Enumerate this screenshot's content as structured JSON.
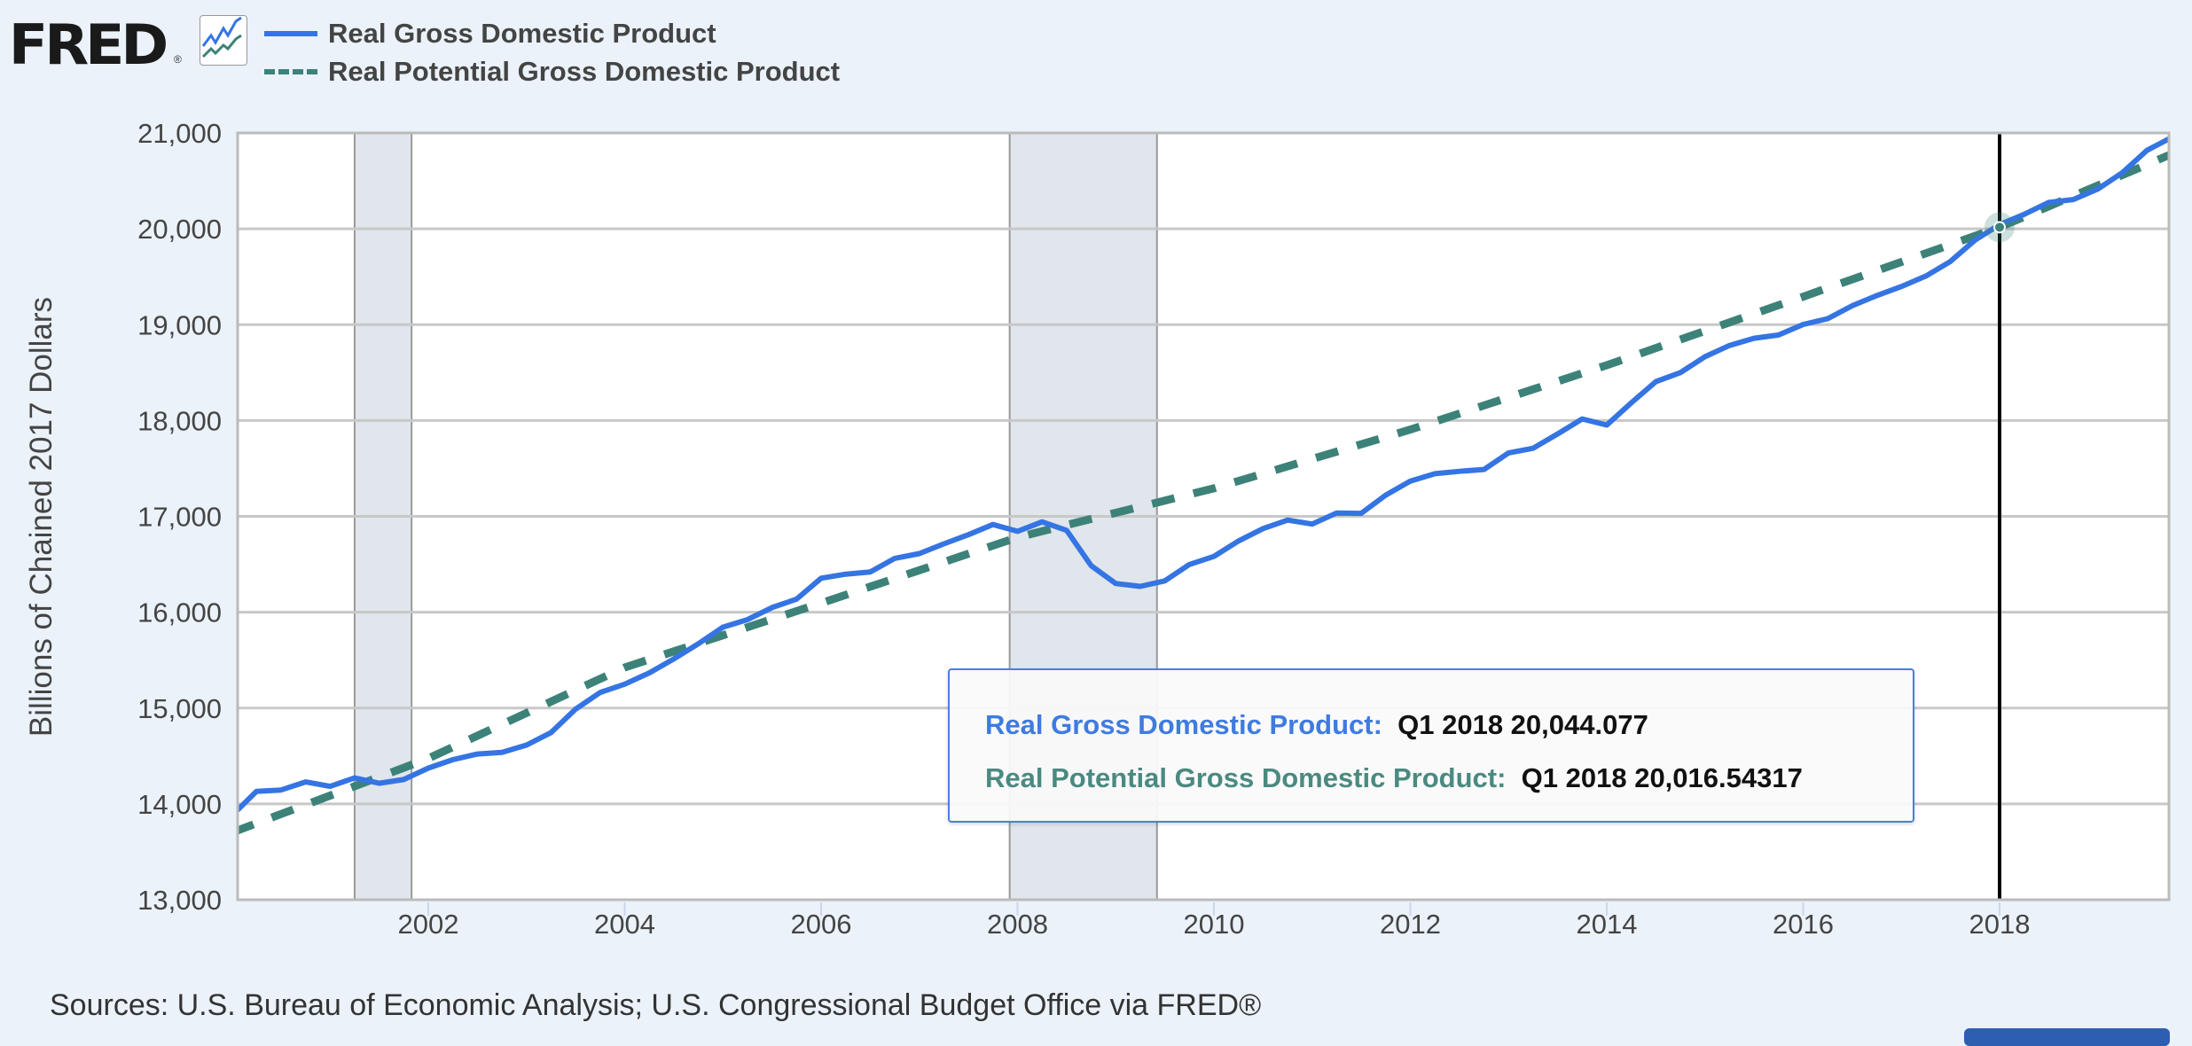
{
  "header": {
    "logo_text": "FRED",
    "logo_icon": "line-chart-icon"
  },
  "tooltip": {
    "gdp_label": "Real Gross Domestic Product:",
    "gdp_value": "Q1 2018 20,044.077",
    "potential_label": "Real Potential Gross Domestic Product:",
    "potential_value": "Q1 2018 20,016.54317"
  },
  "sources": "Sources: U.S. Bureau of Economic Analysis; U.S. Congressional Budget Office via FRED®",
  "chart_data": {
    "type": "line",
    "title": "",
    "xlabel": "",
    "ylabel": "Billions of Chained 2017 Dollars",
    "ylim": [
      13000,
      21000
    ],
    "xlim": [
      2000.0,
      2019.75
    ],
    "yticks": [
      13000,
      14000,
      15000,
      16000,
      17000,
      18000,
      19000,
      20000,
      21000
    ],
    "ytick_labels": [
      "13,000",
      "14,000",
      "15,000",
      "16,000",
      "17,000",
      "18,000",
      "19,000",
      "20,000",
      "21,000"
    ],
    "xticks": [
      2002,
      2004,
      2006,
      2008,
      2010,
      2012,
      2014,
      2016,
      2018
    ],
    "xtick_labels": [
      "2002",
      "2004",
      "2006",
      "2008",
      "2010",
      "2012",
      "2014",
      "2016",
      "2018"
    ],
    "grid": true,
    "legend_position": "top-left",
    "frequency": "quarterly",
    "x_start": "Q1 2000",
    "recessions": [
      [
        2001.25,
        2001.83
      ],
      [
        2007.92,
        2009.42
      ]
    ],
    "highlight_x": 2018.0,
    "series": [
      {
        "name": "Real Gross Domestic Product",
        "color": "#3574e3",
        "style": "solid",
        "values": [
          13878,
          14130,
          14145,
          14229,
          14183,
          14271,
          14215,
          14254,
          14373,
          14461,
          14520,
          14538,
          14614,
          14744,
          14988,
          15162,
          15249,
          15367,
          15513,
          15671,
          15844,
          15923,
          16048,
          16136,
          16354,
          16397,
          16420,
          16562,
          16612,
          16713,
          16809,
          16915,
          16844,
          16943,
          16854,
          16485,
          16299,
          16269,
          16327,
          16498,
          16582,
          16743,
          16872,
          16961,
          16920,
          17035,
          17031,
          17222,
          17368,
          17445,
          17470,
          17489,
          17662,
          17710,
          17860,
          18016,
          17953,
          18185,
          18406,
          18500,
          18666,
          18783,
          18858,
          18892,
          19002,
          19062,
          19197,
          19304,
          19398,
          19507,
          19660,
          19883,
          20044.077,
          20151,
          20276,
          20305,
          20415,
          20585,
          20818,
          20952
        ]
      },
      {
        "name": "Real Potential Gross Domestic Product",
        "color": "#3d8278",
        "style": "dashed",
        "values": [
          13700,
          13797,
          13894,
          13990,
          14087,
          14184,
          14281,
          14377,
          14474,
          14593,
          14711,
          14830,
          14949,
          15067,
          15186,
          15305,
          15423,
          15507,
          15591,
          15675,
          15759,
          15843,
          15927,
          16011,
          16095,
          16181,
          16267,
          16352,
          16438,
          16524,
          16610,
          16695,
          16781,
          16845,
          16909,
          16973,
          17037,
          17100,
          17164,
          17228,
          17292,
          17369,
          17445,
          17522,
          17599,
          17675,
          17752,
          17828,
          17905,
          17989,
          18073,
          18157,
          18241,
          18325,
          18409,
          18493,
          18577,
          18666,
          18756,
          18845,
          18935,
          19024,
          19113,
          19203,
          19292,
          19383,
          19473,
          19564,
          19654,
          19745,
          19835,
          19926,
          20016.54317,
          20125,
          20234,
          20343,
          20452,
          20561,
          20670,
          20780
        ]
      }
    ]
  }
}
